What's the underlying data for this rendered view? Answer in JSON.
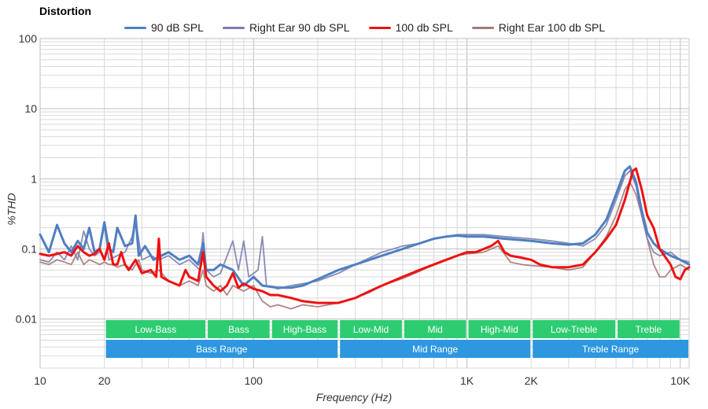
{
  "chart_data": {
    "type": "line",
    "title": "Distortion",
    "xlabel": "Frequency (Hz)",
    "ylabel": "%THD",
    "x_scale": "log",
    "y_scale": "log",
    "xlim": [
      10,
      11000
    ],
    "ylim": [
      0.002,
      100
    ],
    "grid": true,
    "legend_position": "top",
    "x_ticks": [
      {
        "value": 10,
        "label": "10"
      },
      {
        "value": 20,
        "label": "20"
      },
      {
        "value": 100,
        "label": "100"
      },
      {
        "value": 1000,
        "label": "1K"
      },
      {
        "value": 2000,
        "label": "2K"
      },
      {
        "value": 10000,
        "label": "10K"
      }
    ],
    "y_ticks": [
      {
        "value": 100,
        "label": "100"
      },
      {
        "value": 10,
        "label": "10"
      },
      {
        "value": 1,
        "label": "1"
      },
      {
        "value": 0.1,
        "label": "0.1"
      },
      {
        "value": 0.01,
        "label": "0.01"
      }
    ],
    "series": [
      {
        "name": "90 dB SPL",
        "color": "#4f7fc1",
        "width": 3,
        "points": [
          [
            10,
            0.16
          ],
          [
            11,
            0.09
          ],
          [
            12,
            0.22
          ],
          [
            13,
            0.12
          ],
          [
            14,
            0.09
          ],
          [
            15,
            0.13
          ],
          [
            16,
            0.1
          ],
          [
            17,
            0.2
          ],
          [
            18,
            0.09
          ],
          [
            19,
            0.1
          ],
          [
            20,
            0.24
          ],
          [
            21,
            0.1
          ],
          [
            22,
            0.09
          ],
          [
            23,
            0.2
          ],
          [
            25,
            0.11
          ],
          [
            27,
            0.12
          ],
          [
            28,
            0.3
          ],
          [
            29,
            0.08
          ],
          [
            31,
            0.11
          ],
          [
            34,
            0.07
          ],
          [
            37,
            0.08
          ],
          [
            40,
            0.09
          ],
          [
            45,
            0.07
          ],
          [
            50,
            0.08
          ],
          [
            55,
            0.06
          ],
          [
            58,
            0.12
          ],
          [
            60,
            0.05
          ],
          [
            65,
            0.05
          ],
          [
            70,
            0.06
          ],
          [
            80,
            0.05
          ],
          [
            90,
            0.03
          ],
          [
            100,
            0.04
          ],
          [
            110,
            0.03
          ],
          [
            130,
            0.028
          ],
          [
            150,
            0.028
          ],
          [
            170,
            0.03
          ],
          [
            200,
            0.037
          ],
          [
            250,
            0.05
          ],
          [
            300,
            0.06
          ],
          [
            400,
            0.08
          ],
          [
            500,
            0.1
          ],
          [
            600,
            0.12
          ],
          [
            700,
            0.14
          ],
          [
            800,
            0.15
          ],
          [
            900,
            0.155
          ],
          [
            1000,
            0.15
          ],
          [
            1200,
            0.15
          ],
          [
            1500,
            0.14
          ],
          [
            2000,
            0.13
          ],
          [
            2500,
            0.12
          ],
          [
            3000,
            0.115
          ],
          [
            3500,
            0.12
          ],
          [
            4000,
            0.16
          ],
          [
            4500,
            0.26
          ],
          [
            5000,
            0.6
          ],
          [
            5500,
            1.3
          ],
          [
            5800,
            1.5
          ],
          [
            6200,
            0.9
          ],
          [
            6600,
            0.35
          ],
          [
            7000,
            0.17
          ],
          [
            7500,
            0.12
          ],
          [
            8000,
            0.1
          ],
          [
            9000,
            0.08
          ],
          [
            10000,
            0.07
          ],
          [
            11000,
            0.06
          ]
        ]
      },
      {
        "name": "Right Ear 90 db SPL",
        "color": "#7b7fad",
        "width": 1.8,
        "points": [
          [
            10,
            0.07
          ],
          [
            11,
            0.065
          ],
          [
            12,
            0.09
          ],
          [
            13,
            0.07
          ],
          [
            14,
            0.11
          ],
          [
            15,
            0.07
          ],
          [
            16,
            0.18
          ],
          [
            17,
            0.1
          ],
          [
            18,
            0.08
          ],
          [
            19,
            0.09
          ],
          [
            20,
            0.22
          ],
          [
            21,
            0.07
          ],
          [
            23,
            0.08
          ],
          [
            25,
            0.09
          ],
          [
            27,
            0.15
          ],
          [
            28,
            0.26
          ],
          [
            30,
            0.07
          ],
          [
            33,
            0.08
          ],
          [
            36,
            0.07
          ],
          [
            40,
            0.08
          ],
          [
            45,
            0.06
          ],
          [
            50,
            0.07
          ],
          [
            56,
            0.05
          ],
          [
            58,
            0.17
          ],
          [
            60,
            0.05
          ],
          [
            65,
            0.04
          ],
          [
            70,
            0.045
          ],
          [
            80,
            0.13
          ],
          [
            85,
            0.05
          ],
          [
            90,
            0.13
          ],
          [
            95,
            0.04
          ],
          [
            105,
            0.05
          ],
          [
            110,
            0.15
          ],
          [
            115,
            0.03
          ],
          [
            130,
            0.027
          ],
          [
            150,
            0.03
          ],
          [
            170,
            0.032
          ],
          [
            200,
            0.035
          ],
          [
            250,
            0.045
          ],
          [
            300,
            0.06
          ],
          [
            400,
            0.09
          ],
          [
            500,
            0.11
          ],
          [
            600,
            0.12
          ],
          [
            700,
            0.14
          ],
          [
            800,
            0.15
          ],
          [
            900,
            0.16
          ],
          [
            1000,
            0.16
          ],
          [
            1200,
            0.16
          ],
          [
            1500,
            0.15
          ],
          [
            2000,
            0.14
          ],
          [
            2500,
            0.13
          ],
          [
            3000,
            0.12
          ],
          [
            3500,
            0.11
          ],
          [
            4000,
            0.14
          ],
          [
            4500,
            0.22
          ],
          [
            5000,
            0.5
          ],
          [
            5500,
            1.1
          ],
          [
            5800,
            1.3
          ],
          [
            6200,
            0.8
          ],
          [
            6600,
            0.3
          ],
          [
            7000,
            0.14
          ],
          [
            7500,
            0.09
          ],
          [
            8000,
            0.08
          ],
          [
            9000,
            0.09
          ],
          [
            10000,
            0.07
          ],
          [
            11000,
            0.065
          ]
        ]
      },
      {
        "name": "100 db SPL",
        "color": "#ee1111",
        "width": 3,
        "points": [
          [
            10,
            0.085
          ],
          [
            11,
            0.08
          ],
          [
            12,
            0.085
          ],
          [
            13,
            0.09
          ],
          [
            14,
            0.08
          ],
          [
            15,
            0.11
          ],
          [
            16,
            0.09
          ],
          [
            17,
            0.08
          ],
          [
            18,
            0.085
          ],
          [
            19,
            0.1
          ],
          [
            20,
            0.07
          ],
          [
            21,
            0.12
          ],
          [
            22,
            0.06
          ],
          [
            23,
            0.06
          ],
          [
            24,
            0.09
          ],
          [
            25,
            0.06
          ],
          [
            26,
            0.05
          ],
          [
            28,
            0.07
          ],
          [
            30,
            0.045
          ],
          [
            33,
            0.05
          ],
          [
            35,
            0.04
          ],
          [
            36,
            0.14
          ],
          [
            37,
            0.04
          ],
          [
            40,
            0.035
          ],
          [
            45,
            0.03
          ],
          [
            48,
            0.05
          ],
          [
            50,
            0.04
          ],
          [
            55,
            0.035
          ],
          [
            58,
            0.09
          ],
          [
            60,
            0.04
          ],
          [
            65,
            0.03
          ],
          [
            70,
            0.025
          ],
          [
            75,
            0.03
          ],
          [
            80,
            0.045
          ],
          [
            85,
            0.028
          ],
          [
            90,
            0.032
          ],
          [
            100,
            0.027
          ],
          [
            110,
            0.025
          ],
          [
            120,
            0.022
          ],
          [
            130,
            0.022
          ],
          [
            150,
            0.02
          ],
          [
            170,
            0.018
          ],
          [
            200,
            0.017
          ],
          [
            250,
            0.017
          ],
          [
            300,
            0.02
          ],
          [
            350,
            0.025
          ],
          [
            400,
            0.03
          ],
          [
            500,
            0.04
          ],
          [
            600,
            0.05
          ],
          [
            700,
            0.06
          ],
          [
            800,
            0.07
          ],
          [
            900,
            0.08
          ],
          [
            1000,
            0.09
          ],
          [
            1100,
            0.09
          ],
          [
            1200,
            0.1
          ],
          [
            1300,
            0.11
          ],
          [
            1400,
            0.13
          ],
          [
            1500,
            0.09
          ],
          [
            1600,
            0.08
          ],
          [
            1800,
            0.075
          ],
          [
            2000,
            0.07
          ],
          [
            2200,
            0.06
          ],
          [
            2500,
            0.055
          ],
          [
            3000,
            0.055
          ],
          [
            3500,
            0.06
          ],
          [
            4000,
            0.09
          ],
          [
            4500,
            0.14
          ],
          [
            5000,
            0.22
          ],
          [
            5500,
            0.5
          ],
          [
            6000,
            1.3
          ],
          [
            6200,
            1.4
          ],
          [
            6600,
            0.7
          ],
          [
            7000,
            0.3
          ],
          [
            7500,
            0.2
          ],
          [
            8000,
            0.1
          ],
          [
            9000,
            0.06
          ],
          [
            9500,
            0.04
          ],
          [
            10000,
            0.037
          ],
          [
            10500,
            0.05
          ],
          [
            11000,
            0.055
          ]
        ]
      },
      {
        "name": "Right Ear 100 db SPL",
        "color": "#a87878",
        "width": 1.8,
        "points": [
          [
            10,
            0.065
          ],
          [
            11,
            0.06
          ],
          [
            12,
            0.07
          ],
          [
            13,
            0.065
          ],
          [
            14,
            0.06
          ],
          [
            15,
            0.09
          ],
          [
            16,
            0.06
          ],
          [
            17,
            0.07
          ],
          [
            18,
            0.065
          ],
          [
            19,
            0.06
          ],
          [
            20,
            0.065
          ],
          [
            21,
            0.06
          ],
          [
            22,
            0.06
          ],
          [
            23,
            0.055
          ],
          [
            25,
            0.06
          ],
          [
            27,
            0.05
          ],
          [
            29,
            0.07
          ],
          [
            30,
            0.05
          ],
          [
            33,
            0.045
          ],
          [
            36,
            0.05
          ],
          [
            40,
            0.035
          ],
          [
            45,
            0.03
          ],
          [
            50,
            0.035
          ],
          [
            55,
            0.03
          ],
          [
            58,
            0.05
          ],
          [
            60,
            0.03
          ],
          [
            65,
            0.025
          ],
          [
            70,
            0.03
          ],
          [
            75,
            0.022
          ],
          [
            80,
            0.03
          ],
          [
            90,
            0.025
          ],
          [
            100,
            0.03
          ],
          [
            110,
            0.018
          ],
          [
            120,
            0.015
          ],
          [
            130,
            0.016
          ],
          [
            150,
            0.014
          ],
          [
            170,
            0.016
          ],
          [
            200,
            0.015
          ],
          [
            250,
            0.017
          ],
          [
            300,
            0.02
          ],
          [
            350,
            0.024
          ],
          [
            400,
            0.03
          ],
          [
            500,
            0.038
          ],
          [
            600,
            0.048
          ],
          [
            700,
            0.06
          ],
          [
            800,
            0.07
          ],
          [
            900,
            0.08
          ],
          [
            1000,
            0.085
          ],
          [
            1200,
            0.09
          ],
          [
            1300,
            0.1
          ],
          [
            1400,
            0.11
          ],
          [
            1500,
            0.085
          ],
          [
            1600,
            0.065
          ],
          [
            1800,
            0.06
          ],
          [
            2000,
            0.058
          ],
          [
            2500,
            0.055
          ],
          [
            3000,
            0.05
          ],
          [
            3500,
            0.055
          ],
          [
            4000,
            0.09
          ],
          [
            4500,
            0.15
          ],
          [
            5000,
            0.3
          ],
          [
            5500,
            0.7
          ],
          [
            5800,
            0.9
          ],
          [
            6200,
            0.6
          ],
          [
            6600,
            0.3
          ],
          [
            7000,
            0.14
          ],
          [
            7500,
            0.06
          ],
          [
            8000,
            0.04
          ],
          [
            8500,
            0.04
          ],
          [
            9000,
            0.05
          ],
          [
            10000,
            0.06
          ],
          [
            11000,
            0.05
          ]
        ]
      }
    ],
    "band_rows": [
      {
        "color": "#2ecc71",
        "bands": [
          {
            "label": "Low-Bass",
            "from": 20,
            "to": 60
          },
          {
            "label": "Bass",
            "from": 60,
            "to": 120
          },
          {
            "label": "High-Bass",
            "from": 120,
            "to": 250
          },
          {
            "label": "Low-Mid",
            "from": 250,
            "to": 500
          },
          {
            "label": "Mid",
            "from": 500,
            "to": 1000
          },
          {
            "label": "High-Mid",
            "from": 1000,
            "to": 2000
          },
          {
            "label": "Low-Treble",
            "from": 2000,
            "to": 5000
          },
          {
            "label": "Treble",
            "from": 5000,
            "to": 10000
          }
        ]
      },
      {
        "color": "#2d97e0",
        "bands": [
          {
            "label": "Bass Range",
            "from": 20,
            "to": 250
          },
          {
            "label": "Mid Range",
            "from": 250,
            "to": 2000
          },
          {
            "label": "Treble Range",
            "from": 2000,
            "to": 11000
          }
        ]
      }
    ]
  }
}
